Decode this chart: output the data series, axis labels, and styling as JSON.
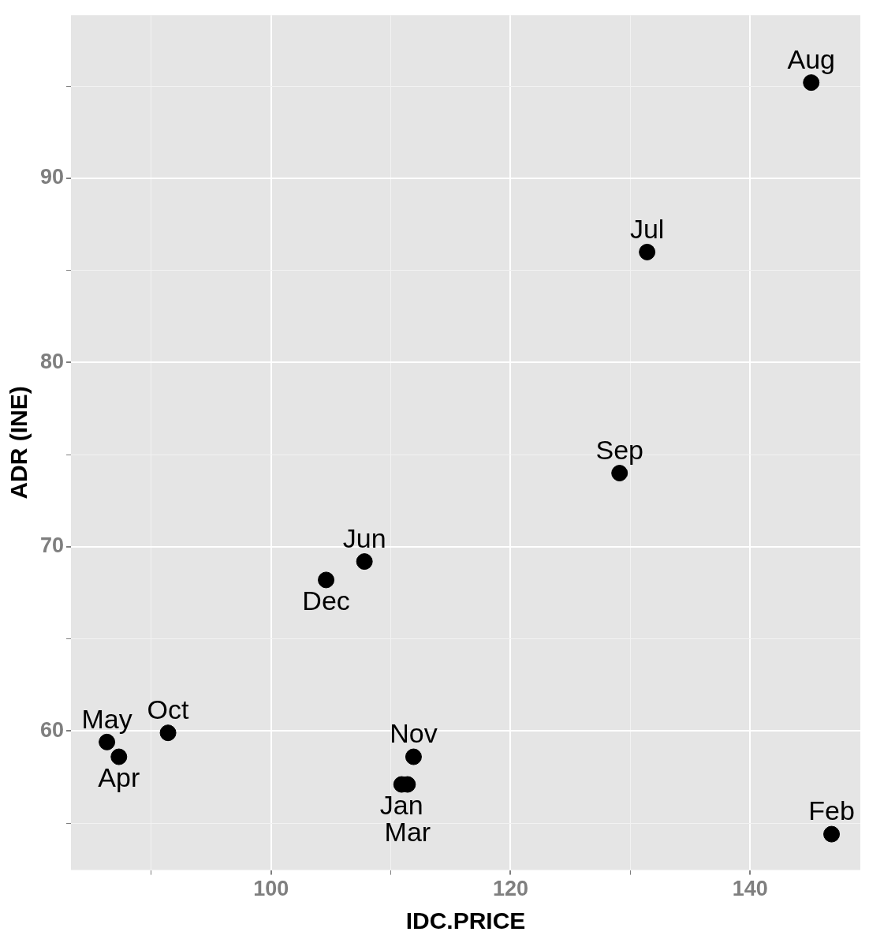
{
  "chart_data": {
    "type": "scatter",
    "xlabel": "IDC.PRICE",
    "ylabel": "ADR (INE)",
    "x": [
      110.9,
      146.8,
      111.4,
      87.3,
      86.3,
      107.8,
      131.4,
      145.1,
      129.1,
      91.4,
      111.9,
      104.6
    ],
    "values": [
      57.1,
      54.4,
      57.1,
      58.6,
      59.4,
      69.2,
      86.0,
      95.2,
      74.0,
      59.9,
      58.6,
      68.2
    ],
    "color": "#000000",
    "marker": "circle",
    "annotations": [
      {
        "text": "Jan",
        "x": 110.9,
        "y": 57.1
      },
      {
        "text": "Feb",
        "x": 146.8,
        "y": 54.4
      },
      {
        "text": "Mar",
        "x": 111.4,
        "y": 57.1
      },
      {
        "text": "Apr",
        "x": 87.3,
        "y": 58.6
      },
      {
        "text": "May",
        "x": 86.3,
        "y": 59.4
      },
      {
        "text": "Jun",
        "x": 107.8,
        "y": 69.2
      },
      {
        "text": "Jul",
        "x": 131.4,
        "y": 86.0
      },
      {
        "text": "Aug",
        "x": 145.1,
        "y": 95.2
      },
      {
        "text": "Sep",
        "x": 129.1,
        "y": 74.0
      },
      {
        "text": "Oct",
        "x": 91.4,
        "y": 59.9
      },
      {
        "text": "Nov",
        "x": 111.9,
        "y": 58.6
      },
      {
        "text": "Dec",
        "x": 104.6,
        "y": 68.2
      }
    ],
    "xlim": [
      83.3,
      149.2
    ],
    "ylim": [
      52.45,
      98.86
    ],
    "xticks": [
      {
        "value": 90,
        "label": null
      },
      100,
      {
        "value": 110,
        "label": null
      },
      120,
      {
        "value": 130,
        "label": null
      },
      140
    ],
    "yticks": [
      {
        "value": 55,
        "label": null
      },
      60,
      {
        "value": 65,
        "label": null
      },
      70,
      {
        "value": 75,
        "label": null
      },
      80,
      {
        "value": 85,
        "label": null
      },
      90,
      {
        "value": 95,
        "label": null
      }
    ],
    "grid": true
  }
}
